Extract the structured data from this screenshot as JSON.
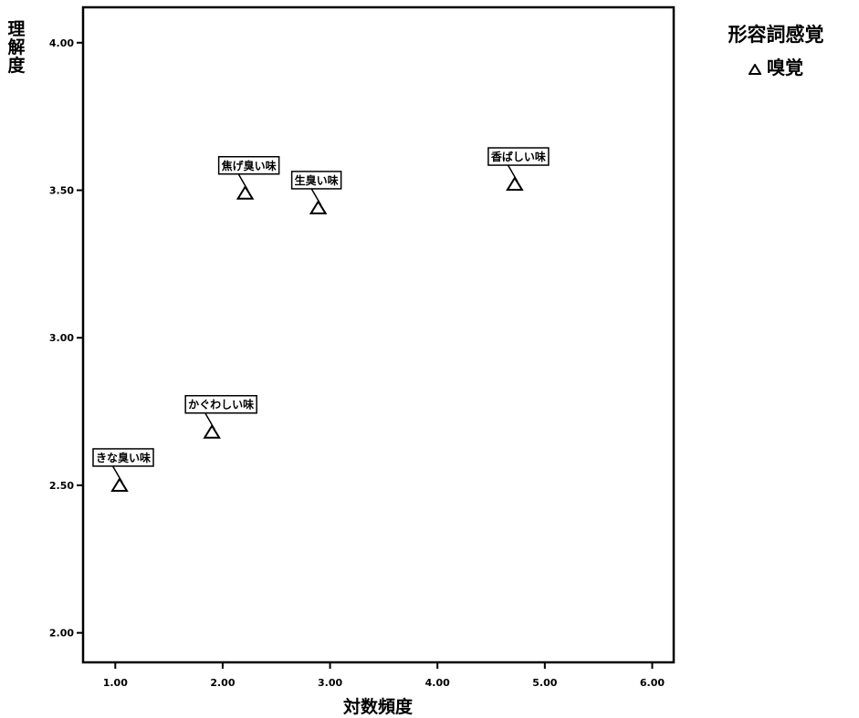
{
  "chart_data": {
    "type": "scatter",
    "title": "",
    "xlabel": "対数頻度",
    "ylabel": "理解度",
    "xlim": [
      0.7,
      6.2
    ],
    "ylim": [
      1.9,
      4.12
    ],
    "x_ticks": [
      "1.00",
      "2.00",
      "3.00",
      "4.00",
      "5.00",
      "6.00"
    ],
    "y_ticks": [
      "2.00",
      "2.50",
      "3.00",
      "3.50",
      "4.00"
    ],
    "grid": false,
    "legend": {
      "title": "形容詞感覚",
      "placement": "top-right",
      "entries": [
        {
          "marker": "triangle",
          "label": "嗅覚"
        }
      ]
    },
    "series": [
      {
        "name": "嗅覚",
        "marker": "triangle",
        "points": [
          {
            "x": 1.04,
            "y": 2.5,
            "label": "きな臭い味"
          },
          {
            "x": 1.9,
            "y": 2.68,
            "label": "かぐわしい味"
          },
          {
            "x": 2.21,
            "y": 3.49,
            "label": "焦げ臭い味"
          },
          {
            "x": 2.89,
            "y": 3.44,
            "label": "生臭い味"
          },
          {
            "x": 4.72,
            "y": 3.52,
            "label": "香ばしい味"
          }
        ]
      }
    ]
  }
}
